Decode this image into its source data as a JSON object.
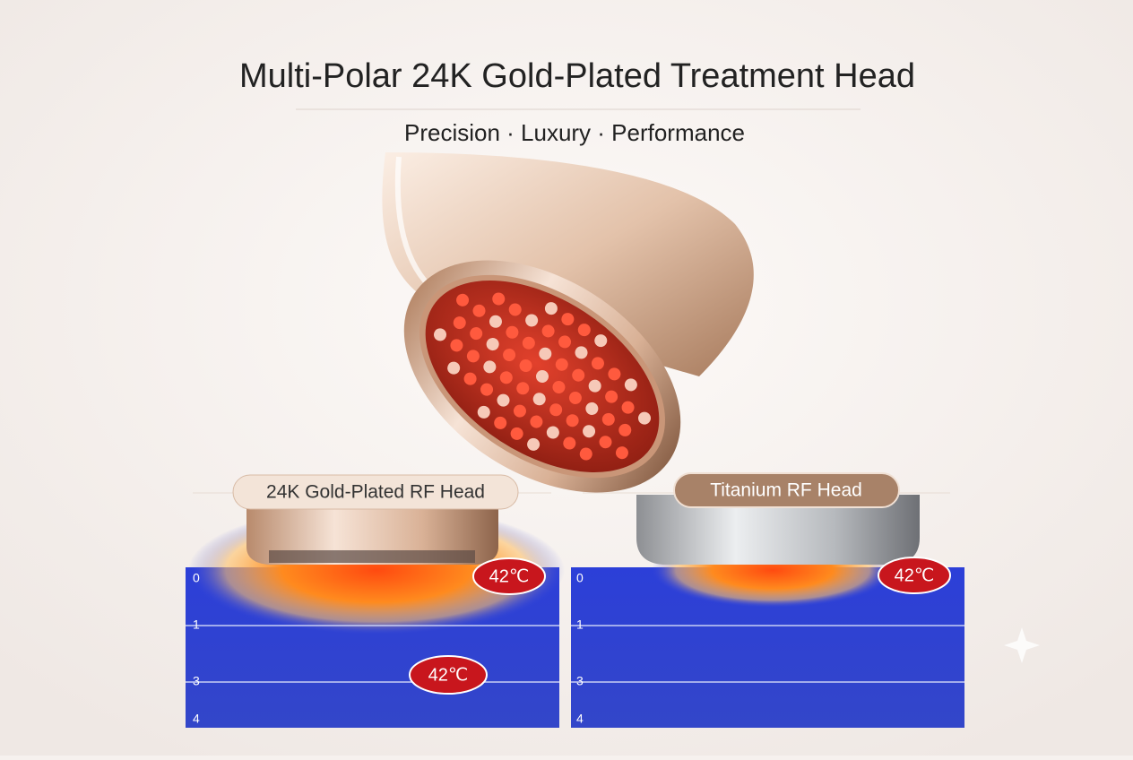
{
  "header": {
    "title": "Multi-Polar 24K Gold-Plated Treatment Head",
    "subtitle": "Precision · Luxury · Performance"
  },
  "panels": [
    {
      "label": "24K Gold-Plated RF Head",
      "depth_ticks": [
        "0",
        "1",
        "3",
        "4"
      ],
      "temperatures": [
        "42℃",
        "42℃"
      ]
    },
    {
      "label": "Titanium RF Head",
      "depth_ticks": [
        "0",
        "1",
        "3",
        "4"
      ],
      "temperatures": [
        "42℃"
      ]
    }
  ]
}
